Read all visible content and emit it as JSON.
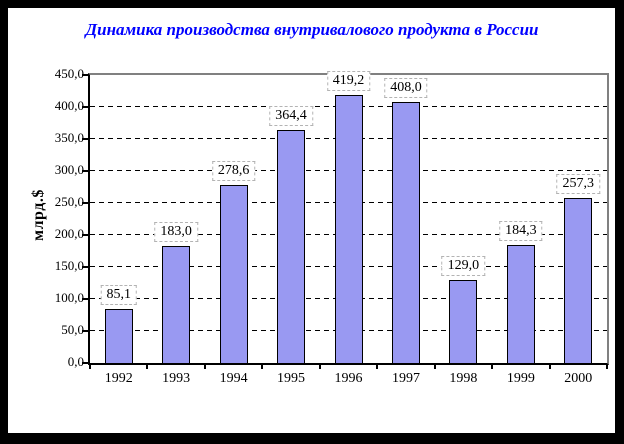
{
  "chart_data": {
    "type": "bar",
    "title": "Динамика производства внутривалового продукта в России",
    "ylabel": "млрд.$",
    "xlabel": "",
    "categories": [
      "1992",
      "1993",
      "1994",
      "1995",
      "1996",
      "1997",
      "1998",
      "1999",
      "2000"
    ],
    "values": [
      85.1,
      183.0,
      278.6,
      364.4,
      419.2,
      408.0,
      129.0,
      184.3,
      257.3
    ],
    "value_labels": [
      "85,1",
      "183,0",
      "278,6",
      "364,4",
      "419,2",
      "408,0",
      "129,0",
      "184,3",
      "257,3"
    ],
    "ylim": [
      0,
      450
    ],
    "ytick_step": 50,
    "ytick_labels": [
      "0,0",
      "50,0",
      "100,0",
      "150,0",
      "200,0",
      "250,0",
      "300,0",
      "350,0",
      "400,0",
      "450,0"
    ],
    "grid": "horizontal-dashed",
    "legend": "none",
    "colors": {
      "title": "#0000FF",
      "bar_fill": "#9999F2",
      "bar_border": "#000000",
      "plot_border": "#808080",
      "grid": "#000000",
      "label_box_border": "#B3B3B3"
    }
  }
}
